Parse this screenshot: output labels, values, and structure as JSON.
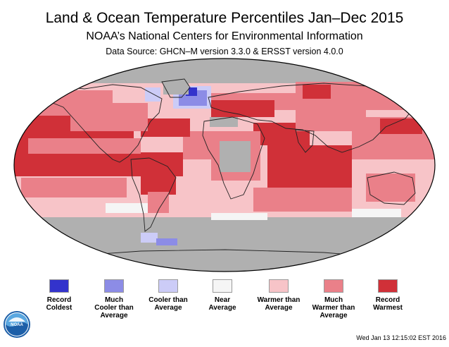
{
  "header": {
    "title": "Land & Ocean Temperature Percentiles Jan–Dec 2015",
    "subtitle": "NOAA’s National Centers for Environmental Information",
    "source": "Data Source: GHCN–M version 3.3.0 & ERSST version 4.0.0"
  },
  "colors": {
    "record_coldest": "#3333cc",
    "much_cooler": "#8c8ce6",
    "cooler": "#ccccf7",
    "near_average": "#f5f5f5",
    "warmer": "#f7c4c8",
    "much_warmer": "#ea8089",
    "record_warmest": "#d03038",
    "no_data": "#b0b0b0"
  },
  "legend": [
    {
      "label": "Record\nColdest",
      "color": "#3333cc"
    },
    {
      "label": "Much\nCooler than\nAverage",
      "color": "#8c8ce6"
    },
    {
      "label": "Cooler than\nAverage",
      "color": "#ccccf7"
    },
    {
      "label": "Near\nAverage",
      "color": "#f5f5f5"
    },
    {
      "label": "Warmer than\nAverage",
      "color": "#f7c4c8"
    },
    {
      "label": "Much\nWarmer than\nAverage",
      "color": "#ea8089"
    },
    {
      "label": "Record\nWarmest",
      "color": "#d03038"
    }
  ],
  "logo": {
    "text": "NOAA",
    "icon": "noaa-logo-icon"
  },
  "footer": {
    "timestamp": "Wed Jan 13 12:15:02 EST 2016"
  }
}
